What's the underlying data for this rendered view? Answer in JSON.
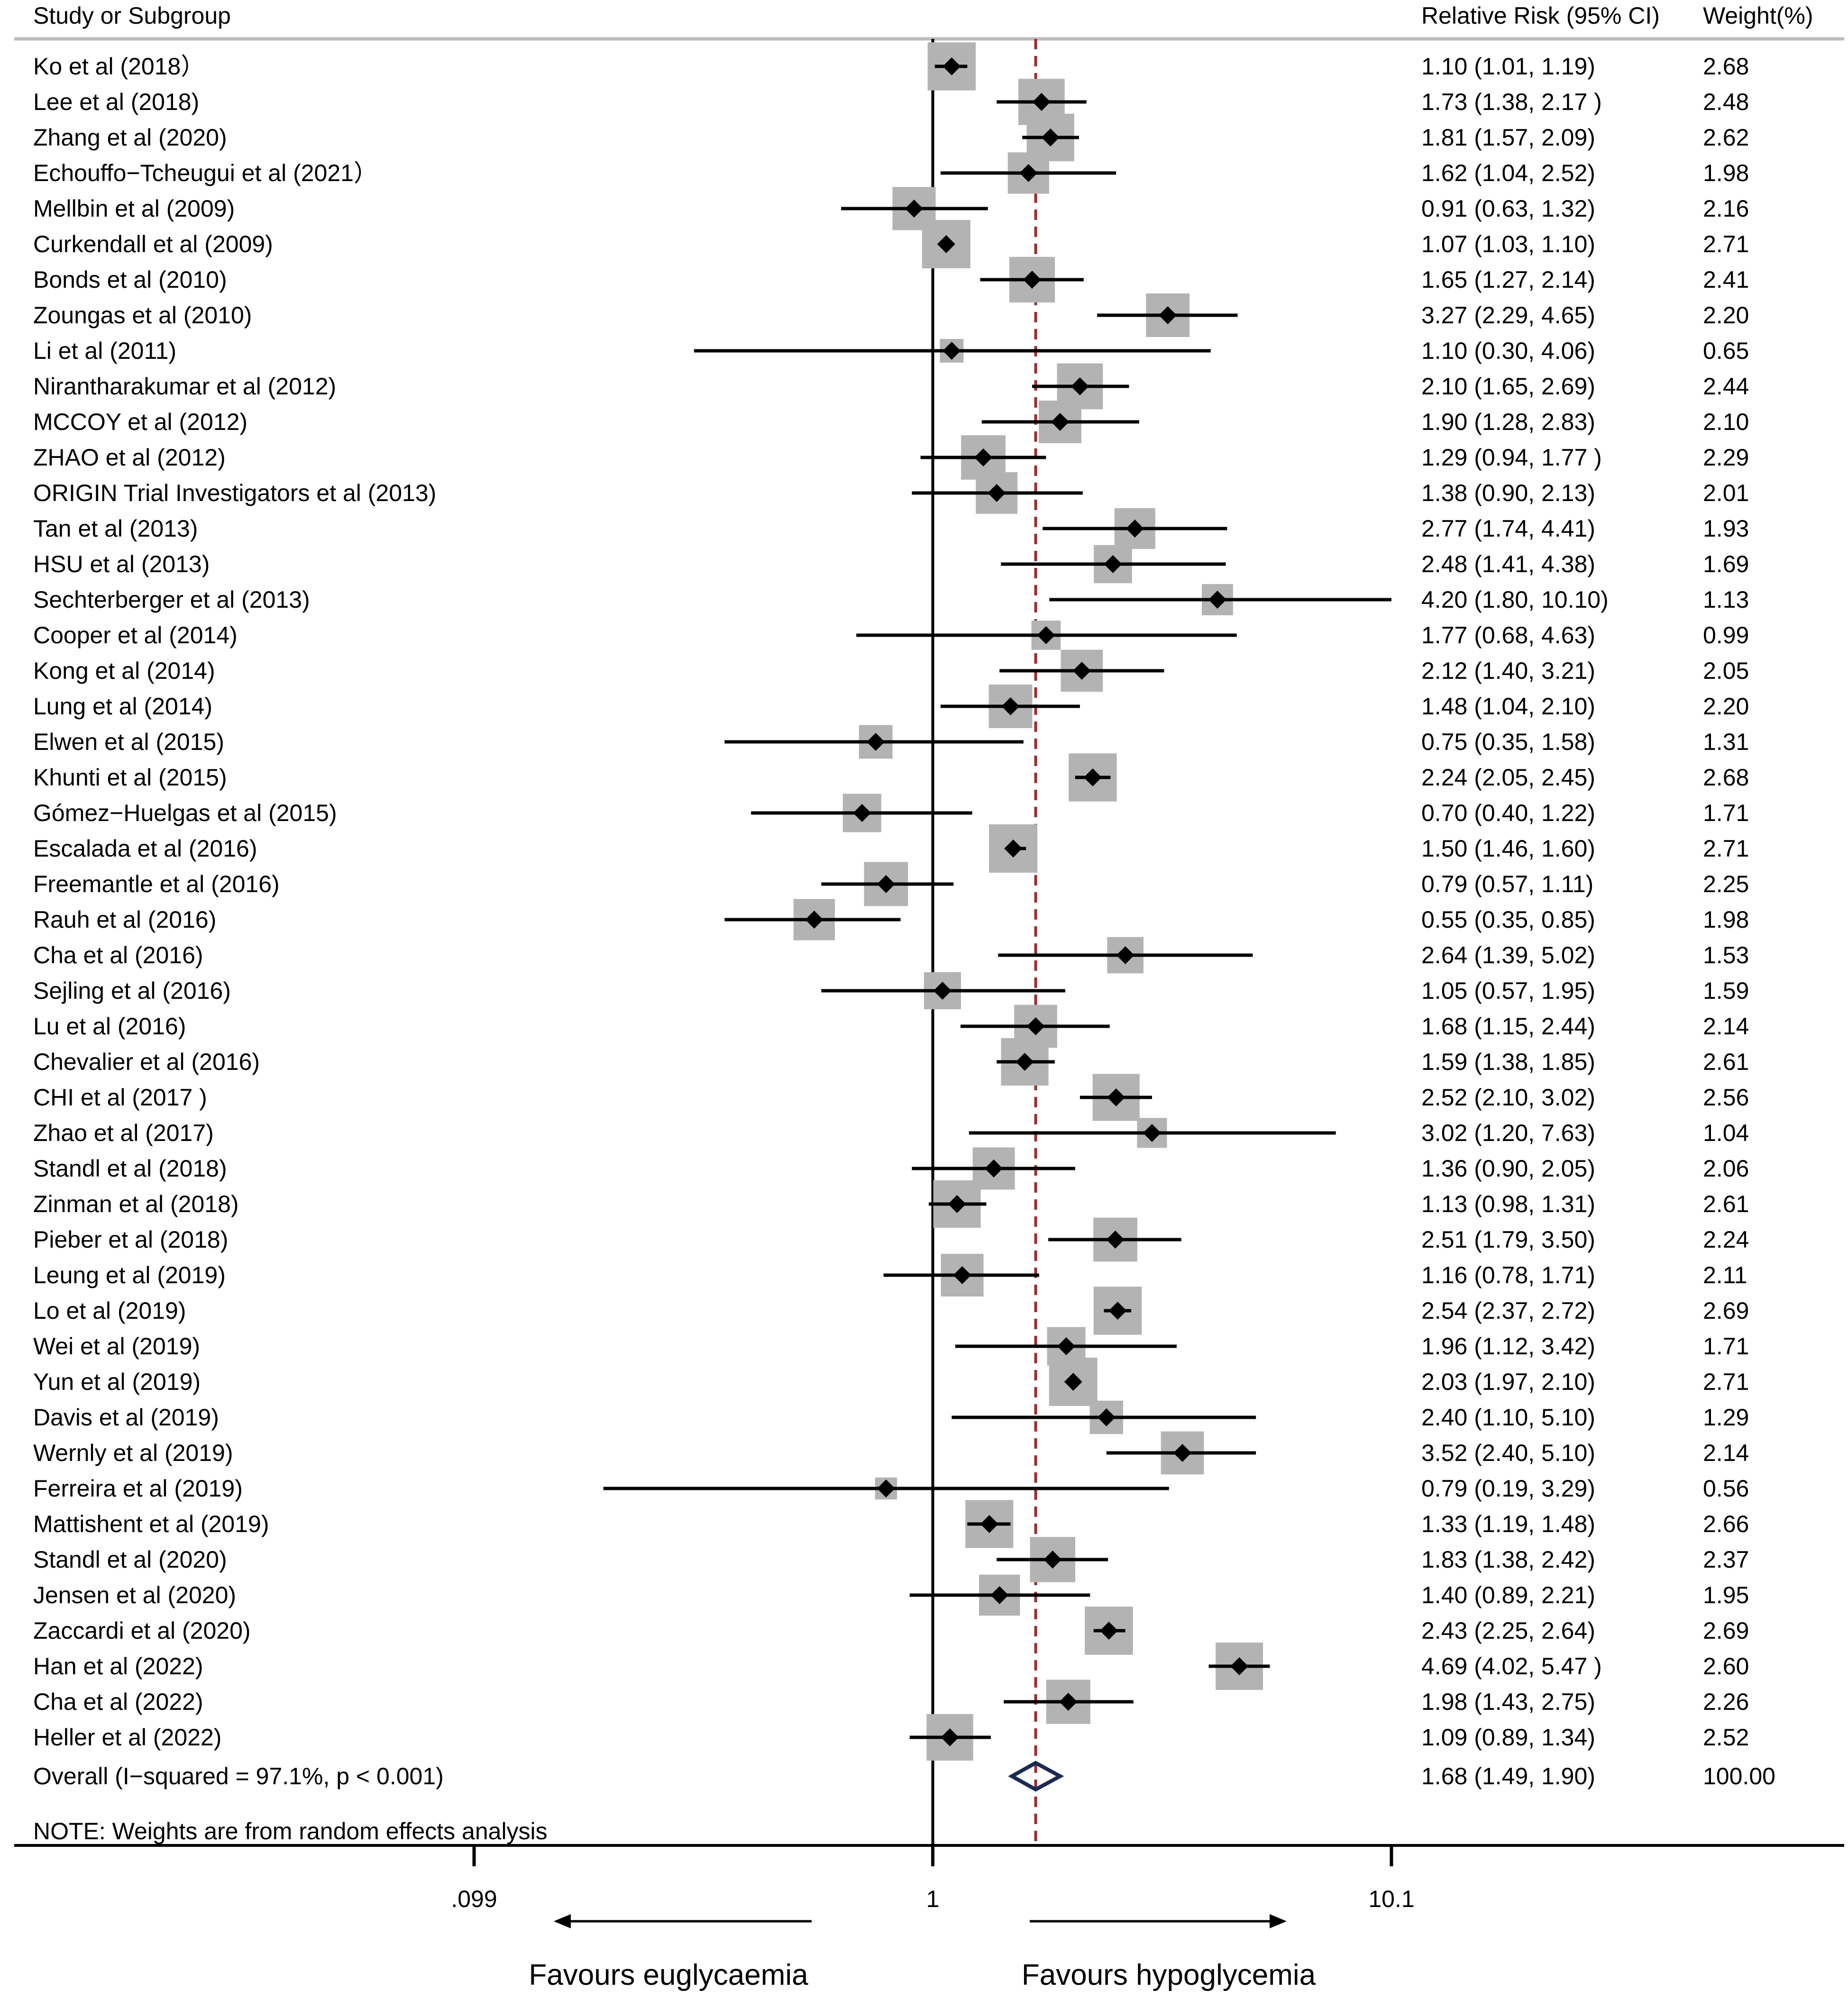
{
  "chart_data": {
    "type": "forest",
    "headers": {
      "study": "Study  or Subgroup",
      "effect": "Relative Risk (95% CI)",
      "weight": "Weight(%)"
    },
    "rows": [
      {
        "label": "Ko et al (2018）",
        "rr": 1.1,
        "lo": 1.01,
        "hi": 1.19,
        "ci_text": "1.10 (1.01, 1.19)",
        "weight": 2.68,
        "weight_text": "2.68"
      },
      {
        "label": "Lee et al (2018)",
        "rr": 1.73,
        "lo": 1.38,
        "hi": 2.17,
        "ci_text": "1.73 (1.38, 2.17 )",
        "weight": 2.48,
        "weight_text": "2.48"
      },
      {
        "label": "Zhang et al (2020)",
        "rr": 1.81,
        "lo": 1.57,
        "hi": 2.09,
        "ci_text": "1.81 (1.57, 2.09)",
        "weight": 2.62,
        "weight_text": "2.62"
      },
      {
        "label": "Echouffo−Tcheugui et al (2021）",
        "rr": 1.62,
        "lo": 1.04,
        "hi": 2.52,
        "ci_text": "1.62 (1.04, 2.52)",
        "weight": 1.98,
        "weight_text": "1.98"
      },
      {
        "label": "Mellbin et al (2009)",
        "rr": 0.91,
        "lo": 0.63,
        "hi": 1.32,
        "ci_text": "0.91 (0.63, 1.32)",
        "weight": 2.16,
        "weight_text": "2.16"
      },
      {
        "label": "Curkendall et al (2009)",
        "rr": 1.07,
        "lo": 1.03,
        "hi": 1.1,
        "ci_text": "1.07 (1.03, 1.10)",
        "weight": 2.71,
        "weight_text": "2.71"
      },
      {
        "label": "Bonds et al (2010)",
        "rr": 1.65,
        "lo": 1.27,
        "hi": 2.14,
        "ci_text": "1.65 (1.27, 2.14)",
        "weight": 2.41,
        "weight_text": "2.41"
      },
      {
        "label": "Zoungas et al (2010)",
        "rr": 3.27,
        "lo": 2.29,
        "hi": 4.65,
        "ci_text": "3.27 (2.29, 4.65)",
        "weight": 2.2,
        "weight_text": "2.20"
      },
      {
        "label": "Li  et al (2011)",
        "rr": 1.1,
        "lo": 0.3,
        "hi": 4.06,
        "ci_text": "1.10 (0.30, 4.06)",
        "weight": 0.65,
        "weight_text": "0.65"
      },
      {
        "label": "Nirantharakumar et al (2012)",
        "rr": 2.1,
        "lo": 1.65,
        "hi": 2.69,
        "ci_text": "2.10 (1.65, 2.69)",
        "weight": 2.44,
        "weight_text": "2.44"
      },
      {
        "label": "MCCOY et al (2012)",
        "rr": 1.9,
        "lo": 1.28,
        "hi": 2.83,
        "ci_text": "1.90 (1.28, 2.83)",
        "weight": 2.1,
        "weight_text": "2.10"
      },
      {
        "label": "ZHAO et al (2012)",
        "rr": 1.29,
        "lo": 0.94,
        "hi": 1.77,
        "ci_text": "1.29 (0.94, 1.77 )",
        "weight": 2.29,
        "weight_text": "2.29"
      },
      {
        "label": "ORIGIN Trial Investigators et al (2013)",
        "rr": 1.38,
        "lo": 0.9,
        "hi": 2.13,
        "ci_text": "1.38 (0.90, 2.13)",
        "weight": 2.01,
        "weight_text": "2.01"
      },
      {
        "label": "Tan et al (2013)",
        "rr": 2.77,
        "lo": 1.74,
        "hi": 4.41,
        "ci_text": "2.77 (1.74, 4.41)",
        "weight": 1.93,
        "weight_text": "1.93"
      },
      {
        "label": "HSU et al (2013)",
        "rr": 2.48,
        "lo": 1.41,
        "hi": 4.38,
        "ci_text": "2.48 (1.41, 4.38)",
        "weight": 1.69,
        "weight_text": "1.69"
      },
      {
        "label": "Sechterberger et al (2013)",
        "rr": 4.2,
        "lo": 1.8,
        "hi": 10.1,
        "ci_text": "4.20 (1.80, 10.10)",
        "weight": 1.13,
        "weight_text": "1.13"
      },
      {
        "label": "Cooper  et al (2014)",
        "rr": 1.77,
        "lo": 0.68,
        "hi": 4.63,
        "ci_text": "1.77 (0.68, 4.63)",
        "weight": 0.99,
        "weight_text": "0.99"
      },
      {
        "label": "Kong et al (2014)",
        "rr": 2.12,
        "lo": 1.4,
        "hi": 3.21,
        "ci_text": "2.12 (1.40, 3.21)",
        "weight": 2.05,
        "weight_text": "2.05"
      },
      {
        "label": "Lung et al (2014)",
        "rr": 1.48,
        "lo": 1.04,
        "hi": 2.1,
        "ci_text": "1.48 (1.04, 2.10)",
        "weight": 2.2,
        "weight_text": "2.20"
      },
      {
        "label": "Elwen et al (2015)",
        "rr": 0.75,
        "lo": 0.35,
        "hi": 1.58,
        "ci_text": "0.75 (0.35, 1.58)",
        "weight": 1.31,
        "weight_text": "1.31"
      },
      {
        "label": "Khunti et al (2015)",
        "rr": 2.24,
        "lo": 2.05,
        "hi": 2.45,
        "ci_text": "2.24 (2.05, 2.45)",
        "weight": 2.68,
        "weight_text": "2.68"
      },
      {
        "label": "Gómez−Huelgas et al (2015)",
        "rr": 0.7,
        "lo": 0.4,
        "hi": 1.22,
        "ci_text": "0.70 (0.40, 1.22)",
        "weight": 1.71,
        "weight_text": "1.71"
      },
      {
        "label": "Escalada  et al (2016)",
        "rr": 1.5,
        "lo": 1.46,
        "hi": 1.6,
        "ci_text": "1.50 (1.46, 1.60)",
        "weight": 2.71,
        "weight_text": "2.71"
      },
      {
        "label": "Freemantle et al (2016)",
        "rr": 0.79,
        "lo": 0.57,
        "hi": 1.11,
        "ci_text": "0.79 (0.57, 1.11)",
        "weight": 2.25,
        "weight_text": "2.25"
      },
      {
        "label": "Rauh et al (2016)",
        "rr": 0.55,
        "lo": 0.35,
        "hi": 0.85,
        "ci_text": "0.55 (0.35, 0.85)",
        "weight": 1.98,
        "weight_text": "1.98"
      },
      {
        "label": "Cha et al (2016)",
        "rr": 2.64,
        "lo": 1.39,
        "hi": 5.02,
        "ci_text": "2.64 (1.39, 5.02)",
        "weight": 1.53,
        "weight_text": "1.53"
      },
      {
        "label": "Sejling et al (2016)",
        "rr": 1.05,
        "lo": 0.57,
        "hi": 1.95,
        "ci_text": "1.05 (0.57, 1.95)",
        "weight": 1.59,
        "weight_text": "1.59"
      },
      {
        "label": "Lu et al (2016)",
        "rr": 1.68,
        "lo": 1.15,
        "hi": 2.44,
        "ci_text": "1.68 (1.15, 2.44)",
        "weight": 2.14,
        "weight_text": "2.14"
      },
      {
        "label": "Chevalier et al (2016)",
        "rr": 1.59,
        "lo": 1.38,
        "hi": 1.85,
        "ci_text": "1.59 (1.38, 1.85)",
        "weight": 2.61,
        "weight_text": "2.61"
      },
      {
        "label": "CHI et al (2017 )",
        "rr": 2.52,
        "lo": 2.1,
        "hi": 3.02,
        "ci_text": "2.52 (2.10, 3.02)",
        "weight": 2.56,
        "weight_text": "2.56"
      },
      {
        "label": "Zhao et al (2017)",
        "rr": 3.02,
        "lo": 1.2,
        "hi": 7.63,
        "ci_text": "3.02 (1.20, 7.63)",
        "weight": 1.04,
        "weight_text": "1.04"
      },
      {
        "label": "Standl  et al (2018)",
        "rr": 1.36,
        "lo": 0.9,
        "hi": 2.05,
        "ci_text": "1.36 (0.90, 2.05)",
        "weight": 2.06,
        "weight_text": "2.06"
      },
      {
        "label": "Zinman et al (2018)",
        "rr": 1.13,
        "lo": 0.98,
        "hi": 1.31,
        "ci_text": "1.13 (0.98, 1.31)",
        "weight": 2.61,
        "weight_text": "2.61"
      },
      {
        "label": "Pieber et al (2018)",
        "rr": 2.51,
        "lo": 1.79,
        "hi": 3.5,
        "ci_text": "2.51 (1.79, 3.50)",
        "weight": 2.24,
        "weight_text": "2.24"
      },
      {
        "label": "Leung et al (2019)",
        "rr": 1.16,
        "lo": 0.78,
        "hi": 1.71,
        "ci_text": "1.16 (0.78, 1.71)",
        "weight": 2.11,
        "weight_text": "2.11"
      },
      {
        "label": "Lo et al (2019)",
        "rr": 2.54,
        "lo": 2.37,
        "hi": 2.72,
        "ci_text": "2.54 (2.37, 2.72)",
        "weight": 2.69,
        "weight_text": "2.69"
      },
      {
        "label": "Wei et al (2019)",
        "rr": 1.96,
        "lo": 1.12,
        "hi": 3.42,
        "ci_text": "1.96 (1.12, 3.42)",
        "weight": 1.71,
        "weight_text": "1.71"
      },
      {
        "label": "Yun et al (2019)",
        "rr": 2.03,
        "lo": 1.97,
        "hi": 2.1,
        "ci_text": "2.03 (1.97, 2.10)",
        "weight": 2.71,
        "weight_text": "2.71"
      },
      {
        "label": "Davis et al (2019)",
        "rr": 2.4,
        "lo": 1.1,
        "hi": 5.1,
        "ci_text": "2.40 (1.10, 5.10)",
        "weight": 1.29,
        "weight_text": "1.29"
      },
      {
        "label": "Wernly et al (2019)",
        "rr": 3.52,
        "lo": 2.4,
        "hi": 5.1,
        "ci_text": "3.52 (2.40, 5.10)",
        "weight": 2.14,
        "weight_text": "2.14"
      },
      {
        "label": "Ferreira et al (2019)",
        "rr": 0.79,
        "lo": 0.19,
        "hi": 3.29,
        "ci_text": "0.79 (0.19, 3.29)",
        "weight": 0.56,
        "weight_text": "0.56"
      },
      {
        "label": "Mattishent et al (2019)",
        "rr": 1.33,
        "lo": 1.19,
        "hi": 1.48,
        "ci_text": "1.33 (1.19, 1.48)",
        "weight": 2.66,
        "weight_text": "2.66"
      },
      {
        "label": "Standl et al (2020)",
        "rr": 1.83,
        "lo": 1.38,
        "hi": 2.42,
        "ci_text": "1.83 (1.38, 2.42)",
        "weight": 2.37,
        "weight_text": "2.37"
      },
      {
        "label": "Jensen et al (2020)",
        "rr": 1.4,
        "lo": 0.89,
        "hi": 2.21,
        "ci_text": "1.40 (0.89, 2.21)",
        "weight": 1.95,
        "weight_text": "1.95"
      },
      {
        "label": "Zaccardi et al (2020)",
        "rr": 2.43,
        "lo": 2.25,
        "hi": 2.64,
        "ci_text": "2.43 (2.25, 2.64)",
        "weight": 2.69,
        "weight_text": "2.69"
      },
      {
        "label": "Han et al (2022)",
        "rr": 4.69,
        "lo": 4.02,
        "hi": 5.47,
        "ci_text": "4.69 (4.02, 5.47 )",
        "weight": 2.6,
        "weight_text": "2.60"
      },
      {
        "label": "Cha et al (2022)",
        "rr": 1.98,
        "lo": 1.43,
        "hi": 2.75,
        "ci_text": "1.98 (1.43, 2.75)",
        "weight": 2.26,
        "weight_text": "2.26"
      },
      {
        "label": "Heller et al (2022)",
        "rr": 1.09,
        "lo": 0.89,
        "hi": 1.34,
        "ci_text": "1.09 (0.89, 1.34)",
        "weight": 2.52,
        "weight_text": "2.52"
      }
    ],
    "overall": {
      "label": "Overall  (I−squared = 97.1%, p < 0.001)",
      "rr": 1.68,
      "lo": 1.49,
      "hi": 1.9,
      "ci_text": "1.68 (1.49, 1.90)",
      "weight_text": "100.00"
    },
    "note": "NOTE: Weights are from random effects analysis",
    "x_axis": {
      "scale": "log",
      "range": [
        0.099,
        10.1
      ],
      "ticks": [
        {
          "value": 0.099,
          "label": ".099"
        },
        {
          "value": 1,
          "label": "1"
        },
        {
          "value": 10.1,
          "label": "10.1"
        }
      ],
      "null_line": 1,
      "pooled_line": 1.68
    },
    "direction_labels": {
      "left": "Favours euglycaemia",
      "right": "Favours hypoglycemia"
    },
    "colors": {
      "weight_box": "#b3b3b3",
      "estimate_marker": "#000000",
      "ci_line": "#000000",
      "pooled_line": "#9b2d2d",
      "overall_diamond": "#1b2a52",
      "header_rule": "#bdbdbd"
    }
  }
}
